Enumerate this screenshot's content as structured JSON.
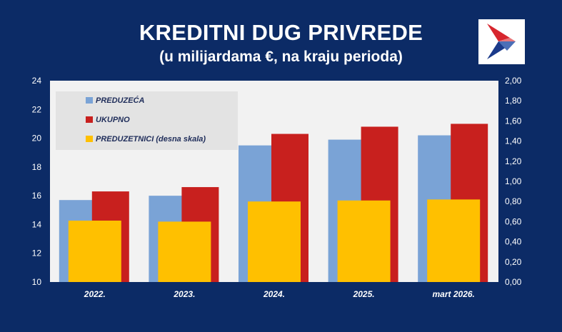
{
  "header": {
    "title": "KREDITNI DUG PRIVREDE",
    "subtitle": "(u milijardama €, na kraju perioda)"
  },
  "logo": {
    "icon": "bank-logo-icon",
    "colors": [
      "#d7262e",
      "#1b3a8a"
    ]
  },
  "chart_data": {
    "type": "bar",
    "categories": [
      "2022.",
      "2023.",
      "2024.",
      "2025.",
      "mart 2026."
    ],
    "series": [
      {
        "name": "PREDUZEĆA",
        "axis": "left",
        "color": "#7aa3d6",
        "values": [
          15.7,
          16.0,
          19.5,
          19.9,
          20.2
        ]
      },
      {
        "name": "UKUPNO",
        "axis": "left",
        "color": "#c8201e",
        "values": [
          16.3,
          16.6,
          20.3,
          20.8,
          21.0
        ]
      },
      {
        "name": "PREDUZETNICI (desna skala)",
        "axis": "right",
        "color": "#ffc000",
        "values": [
          0.61,
          0.6,
          0.8,
          0.81,
          0.82
        ]
      }
    ],
    "ylim_left": [
      10,
      24
    ],
    "ylim_right": [
      0,
      2
    ],
    "yticks_left": [
      "10",
      "12",
      "14",
      "16",
      "18",
      "20",
      "22",
      "24"
    ],
    "yticks_right": [
      "0,00",
      "0,20",
      "0,40",
      "0,60",
      "0,80",
      "1,00",
      "1,20",
      "1,40",
      "1,60",
      "1,80",
      "2,00"
    ],
    "legend_placement": "top-left",
    "grid": false,
    "plot_background": "#f2f2f2"
  }
}
